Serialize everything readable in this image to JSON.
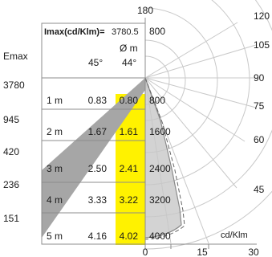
{
  "header": {
    "imax_label": "Imax(cd/Klm)=",
    "imax_value": "3780.5",
    "diameter_label": "Ø m",
    "angle_c0": "45°",
    "angle_c90": "44°",
    "emax_label": "Emax"
  },
  "polar": {
    "top_angle": "180",
    "side_angles": [
      "120",
      "105",
      "90",
      "75",
      "60",
      "45"
    ],
    "bottom_ticks": [
      "0",
      "15",
      "30"
    ],
    "unit": "cd/Klm"
  },
  "table": {
    "rows": [
      {
        "dist": "1 m",
        "emax": "3780",
        "d45": "0.83",
        "d44": "0.80",
        "cd": "800"
      },
      {
        "dist": "2 m",
        "emax": "945",
        "d45": "1.67",
        "d44": "1.61",
        "cd": "1600"
      },
      {
        "dist": "3 m",
        "emax": "420",
        "d45": "2.50",
        "d44": "2.41",
        "cd": "2400"
      },
      {
        "dist": "4 m",
        "emax": "236",
        "d45": "3.33",
        "d44": "3.22",
        "cd": "3200"
      },
      {
        "dist": "5 m",
        "emax": "151",
        "d45": "4.16",
        "d44": "4.02",
        "cd": "4000"
      }
    ],
    "top_cd": "800"
  },
  "colors": {
    "highlight": "#fff200",
    "cone": "#a6a6a6",
    "curve_fill": "#d3d3d3",
    "grid": "#c8c8c8",
    "frame": "#8c8c8c"
  }
}
